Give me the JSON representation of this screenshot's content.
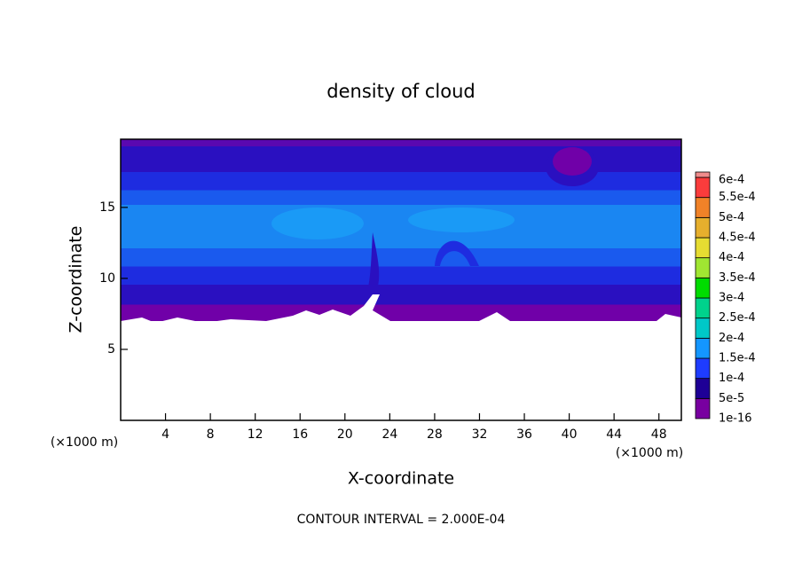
{
  "chart_data": {
    "type": "contour",
    "title": "density of cloud",
    "x_label": "X-coordinate",
    "y_label": "Z-coordinate",
    "x_unit_label": "(×1000 m)",
    "y_unit_label": "(×1000 m)",
    "footnote": "CONTOUR INTERVAL = 2.000E-04",
    "xlim": [
      0,
      50
    ],
    "ylim": [
      0,
      19.8
    ],
    "xticks": [
      4,
      8,
      12,
      16,
      20,
      24,
      28,
      32,
      36,
      40,
      44,
      48
    ],
    "yticks": [
      5,
      10,
      15
    ],
    "colorbar": {
      "levels": [
        {
          "value": 1e-16,
          "label": "1e-16"
        },
        {
          "value": 5e-05,
          "label": "5e-5"
        },
        {
          "value": 0.0001,
          "label": "1e-4"
        },
        {
          "value": 0.00015,
          "label": "1.5e-4"
        },
        {
          "value": 0.0002,
          "label": "2e-4"
        },
        {
          "value": 0.00025,
          "label": "2.5e-4"
        },
        {
          "value": 0.0003,
          "label": "3e-4"
        },
        {
          "value": 0.00035,
          "label": "3.5e-4"
        },
        {
          "value": 0.0004,
          "label": "4e-4"
        },
        {
          "value": 0.00045,
          "label": "4.5e-4"
        },
        {
          "value": 0.0005,
          "label": "5e-4"
        },
        {
          "value": 0.00055,
          "label": "5.5e-4"
        },
        {
          "value": 0.0006,
          "label": "6e-4"
        }
      ],
      "colors": [
        "#7800a0",
        "#1e0096",
        "#1e3cff",
        "#1496ff",
        "#00c8c8",
        "#00d28c",
        "#00dc00",
        "#a0e632",
        "#e6dc32",
        "#e6af2d",
        "#f08228",
        "#fa3c3c",
        "#f08c8c"
      ]
    }
  }
}
